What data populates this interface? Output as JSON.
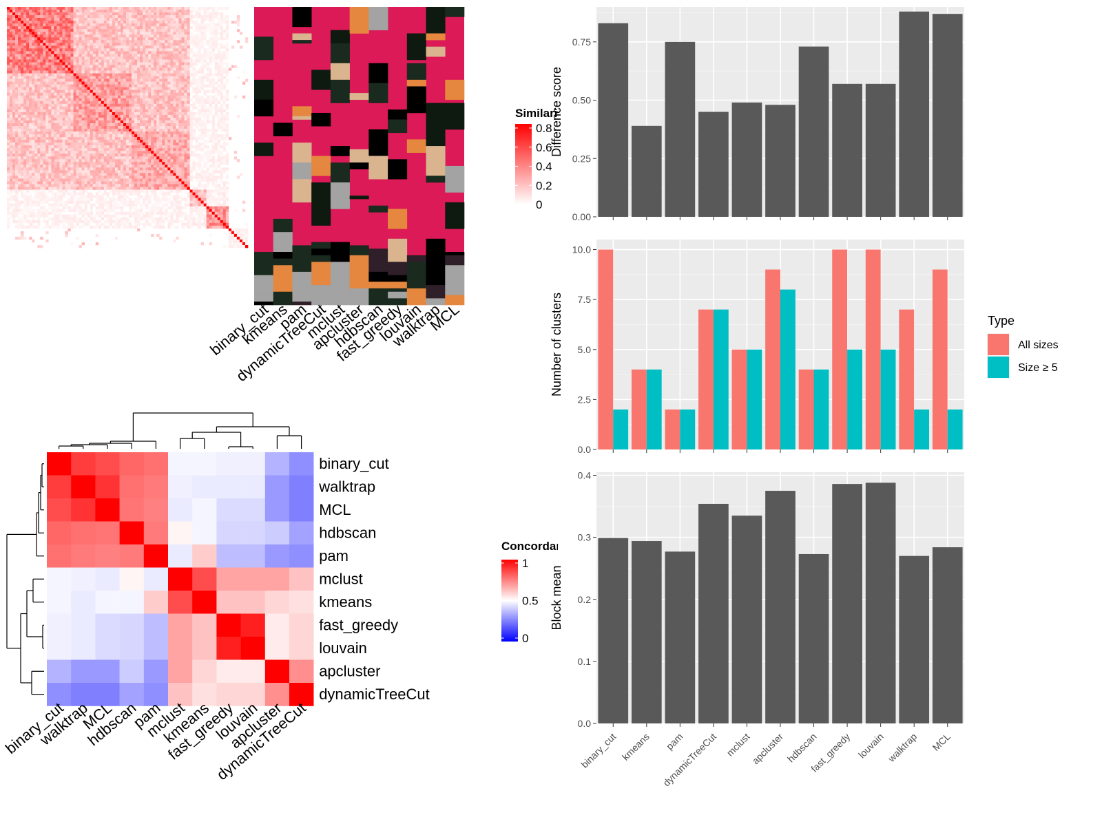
{
  "chart_data": [
    {
      "type": "heatmap",
      "panel": "similarity-heatmap",
      "legend_title": "Similarity",
      "legend_ticks": [
        "0.8",
        "0.6",
        "0.4",
        "0.2",
        "0"
      ],
      "row_labels": [],
      "col_labels": []
    },
    {
      "type": "heatmap",
      "panel": "cluster-membership-annotation",
      "columns": [
        "binary_cut",
        "kmeans",
        "pam",
        "dynamicTreeCut",
        "mclust",
        "apcluster",
        "hdbscan",
        "fast_greedy",
        "louvain",
        "walktrap",
        "MCL"
      ]
    },
    {
      "type": "heatmap",
      "panel": "concordance-heatmap",
      "legend_title": "Concordance",
      "legend_ticks": [
        "1",
        "0.5",
        "0"
      ],
      "row_labels": [
        "binary_cut",
        "walktrap",
        "MCL",
        "hdbscan",
        "pam",
        "mclust",
        "kmeans",
        "fast_greedy",
        "louvain",
        "apcluster",
        "dynamicTreeCut"
      ],
      "col_labels": [
        "binary_cut",
        "walktrap",
        "MCL",
        "hdbscan",
        "pam",
        "mclust",
        "kmeans",
        "fast_greedy",
        "louvain",
        "apcluster",
        "dynamicTreeCut"
      ],
      "values": [
        [
          1.0,
          0.88,
          0.85,
          0.8,
          0.78,
          0.48,
          0.48,
          0.47,
          0.47,
          0.35,
          0.28
        ],
        [
          0.88,
          1.0,
          0.9,
          0.78,
          0.76,
          0.47,
          0.46,
          0.46,
          0.46,
          0.3,
          0.25
        ],
        [
          0.85,
          0.9,
          1.0,
          0.77,
          0.75,
          0.46,
          0.48,
          0.43,
          0.43,
          0.3,
          0.25
        ],
        [
          0.8,
          0.78,
          0.77,
          1.0,
          0.76,
          0.52,
          0.48,
          0.42,
          0.42,
          0.4,
          0.32
        ],
        [
          0.78,
          0.76,
          0.75,
          0.76,
          1.0,
          0.46,
          0.6,
          0.37,
          0.37,
          0.3,
          0.28
        ],
        [
          0.48,
          0.47,
          0.46,
          0.52,
          0.46,
          1.0,
          0.85,
          0.68,
          0.68,
          0.68,
          0.62
        ],
        [
          0.48,
          0.46,
          0.48,
          0.48,
          0.6,
          0.85,
          1.0,
          0.62,
          0.62,
          0.58,
          0.56
        ],
        [
          0.47,
          0.46,
          0.43,
          0.42,
          0.37,
          0.68,
          0.62,
          1.0,
          0.94,
          0.54,
          0.58
        ],
        [
          0.47,
          0.46,
          0.43,
          0.42,
          0.37,
          0.68,
          0.62,
          0.94,
          1.0,
          0.54,
          0.58
        ],
        [
          0.35,
          0.3,
          0.3,
          0.4,
          0.3,
          0.68,
          0.58,
          0.54,
          0.54,
          1.0,
          0.72
        ],
        [
          0.28,
          0.25,
          0.25,
          0.32,
          0.28,
          0.62,
          0.56,
          0.58,
          0.58,
          0.72,
          1.0
        ]
      ]
    },
    {
      "type": "bar",
      "panel": "difference-score",
      "categories": [
        "binary_cut",
        "kmeans",
        "pam",
        "dynamicTreeCut",
        "mclust",
        "apcluster",
        "hdbscan",
        "fast_greedy",
        "louvain",
        "walktrap",
        "MCL"
      ],
      "values": [
        0.83,
        0.39,
        0.75,
        0.45,
        0.49,
        0.48,
        0.73,
        0.57,
        0.57,
        0.88,
        0.87
      ],
      "xlabel": "",
      "ylabel": "Difference score",
      "ylim": [
        0,
        0.9
      ],
      "yticks": [
        "0.00",
        "0.25",
        "0.50",
        "0.75"
      ],
      "color": "#595959"
    },
    {
      "type": "bar",
      "panel": "number-of-clusters",
      "categories": [
        "binary_cut",
        "kmeans",
        "pam",
        "dynamicTreeCut",
        "mclust",
        "apcluster",
        "hdbscan",
        "fast_greedy",
        "louvain",
        "walktrap",
        "MCL"
      ],
      "series": [
        {
          "name": "All sizes",
          "color": "#F8766D",
          "values": [
            10,
            4,
            2,
            7,
            5,
            9,
            4,
            10,
            10,
            7,
            9
          ]
        },
        {
          "name": "Size ≥ 5",
          "color": "#00BFC4",
          "values": [
            2,
            4,
            2,
            7,
            5,
            8,
            4,
            5,
            5,
            2,
            2
          ]
        }
      ],
      "xlabel": "",
      "ylabel": "Number of clusters",
      "ylim": [
        0,
        10.5
      ],
      "yticks": [
        "0.0",
        "2.5",
        "5.0",
        "7.5",
        "10.0"
      ],
      "legend_title": "Type",
      "legend_position": "right"
    },
    {
      "type": "bar",
      "panel": "block-mean",
      "categories": [
        "binary_cut",
        "kmeans",
        "pam",
        "dynamicTreeCut",
        "mclust",
        "apcluster",
        "hdbscan",
        "fast_greedy",
        "louvain",
        "walktrap",
        "MCL"
      ],
      "values": [
        0.299,
        0.294,
        0.277,
        0.354,
        0.335,
        0.375,
        0.273,
        0.386,
        0.388,
        0.27,
        0.284
      ],
      "xlabel": "",
      "ylabel": "Block mean",
      "ylim": [
        0,
        0.405
      ],
      "yticks": [
        "0.0",
        "0.1",
        "0.2",
        "0.3",
        "0.4"
      ],
      "color": "#595959"
    }
  ]
}
